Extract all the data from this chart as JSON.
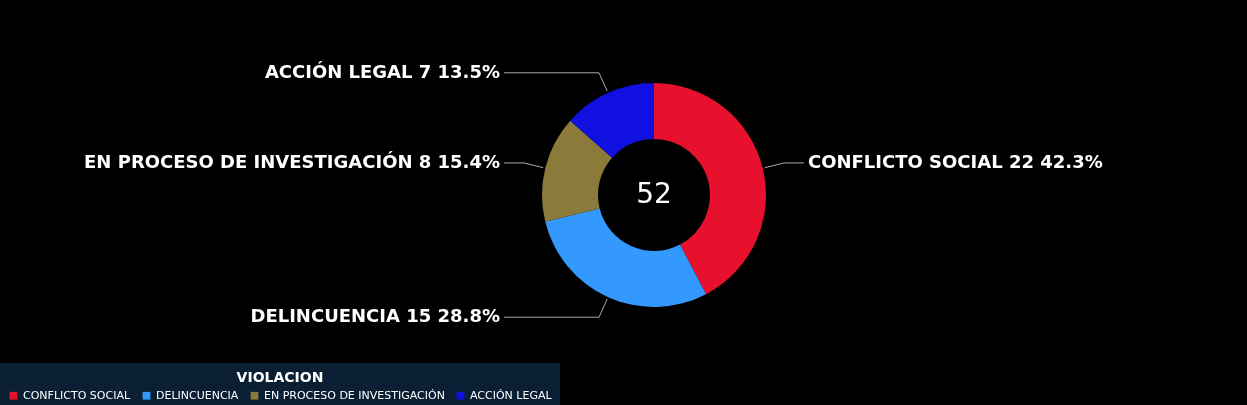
{
  "chart_data": {
    "type": "donut",
    "categories": [
      "CONFLICTO SOCIAL",
      "DELINCUENCIA",
      "EN PROCESO DE INVESTIGACIÓN",
      "ACCIÓN LEGAL"
    ],
    "values": [
      22,
      15,
      8,
      7
    ],
    "value_labels": [
      "22 42.3%",
      "15 28.8%",
      "8 15.4%",
      "7 13.5%"
    ],
    "colors": [
      "#e8112d",
      "#3399ff",
      "#8c7a3a",
      "#1010e0"
    ],
    "legend_title": "VIOLACION",
    "legend": "bottom",
    "annotations": [
      "52"
    ]
  }
}
